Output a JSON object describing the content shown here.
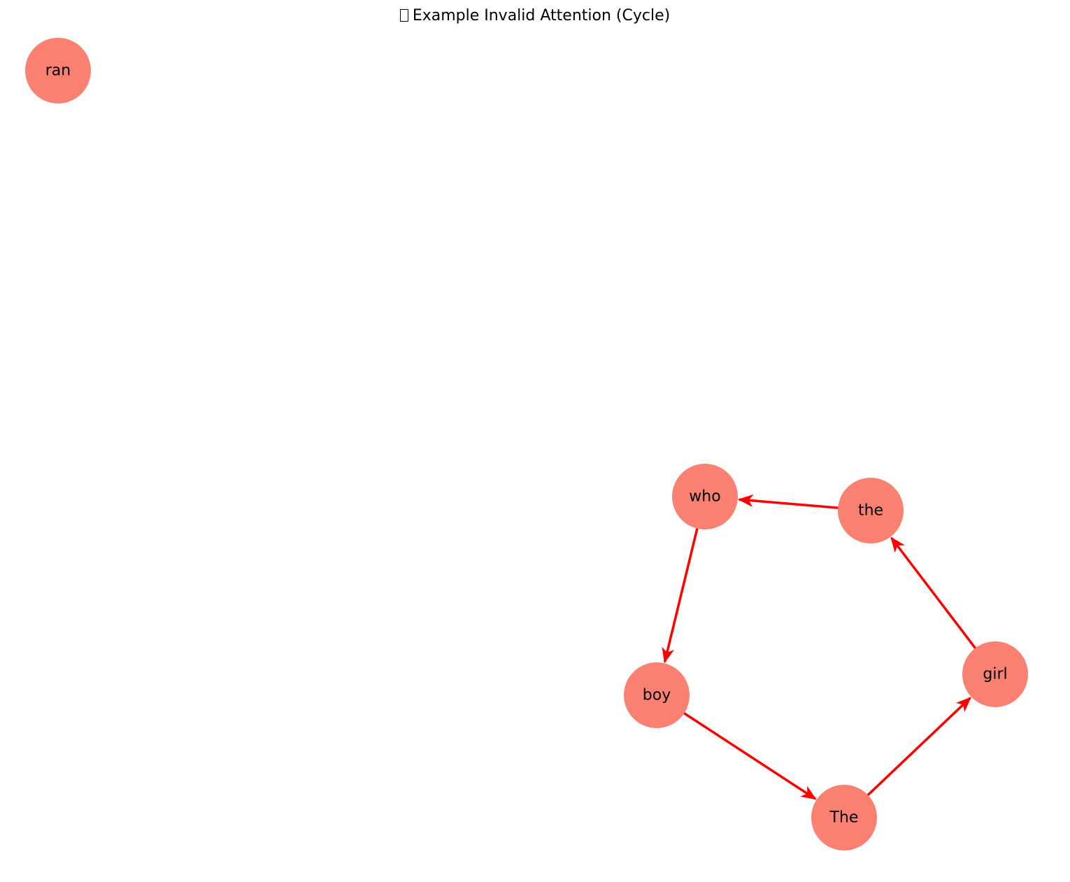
{
  "title": {
    "text": "Example Invalid Attention (Cycle)",
    "missing_glyph": true
  },
  "colors": {
    "node_fill": "#fa8072",
    "edge": "#ff0000",
    "label": "#000000",
    "background": "#ffffff"
  },
  "graph": {
    "nodes": [
      {
        "id": "ran",
        "label": "ran"
      },
      {
        "id": "who",
        "label": "who"
      },
      {
        "id": "the",
        "label": "the"
      },
      {
        "id": "girl",
        "label": "girl"
      },
      {
        "id": "boy",
        "label": "boy"
      },
      {
        "id": "The",
        "label": "The"
      }
    ],
    "edges": [
      {
        "from": "the",
        "to": "who"
      },
      {
        "from": "who",
        "to": "boy"
      },
      {
        "from": "boy",
        "to": "The"
      },
      {
        "from": "The",
        "to": "girl"
      },
      {
        "from": "girl",
        "to": "the"
      }
    ]
  }
}
